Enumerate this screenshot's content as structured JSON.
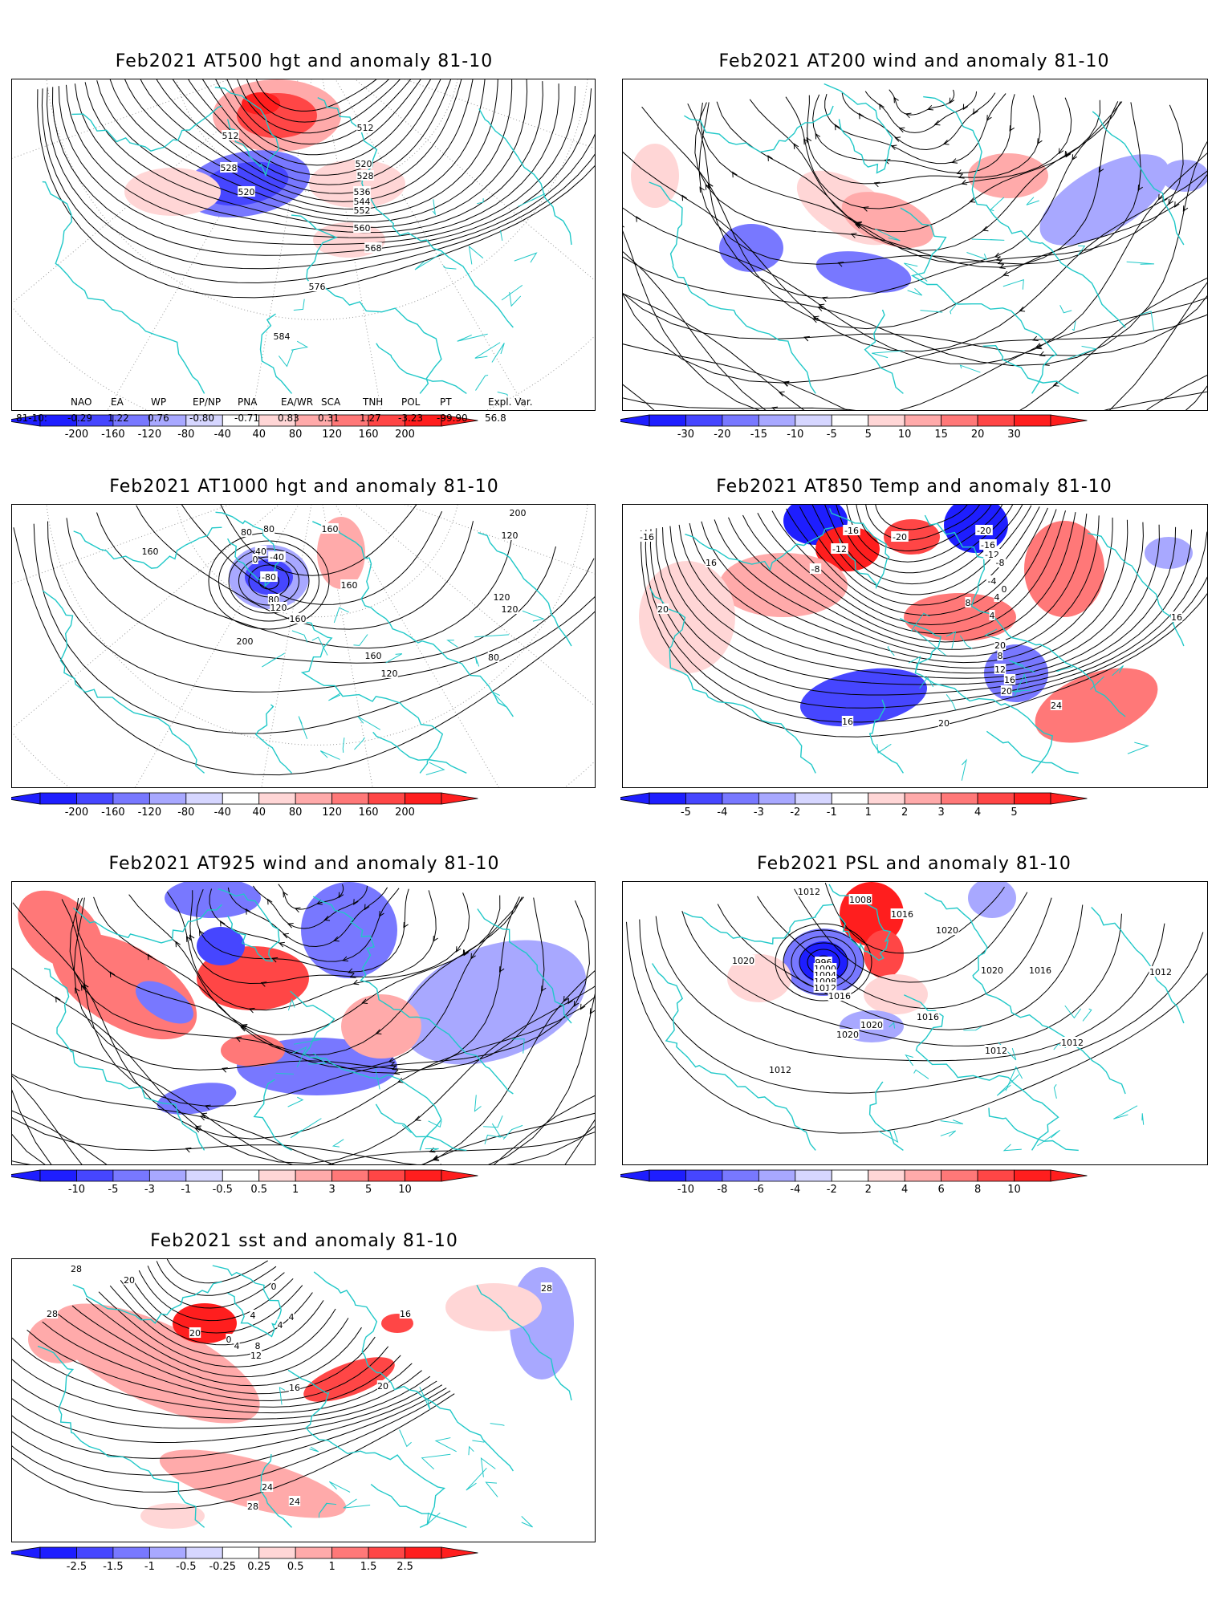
{
  "panels": [
    {
      "id": "p1",
      "title": "Feb2021 AT500 hgt and anomaly 81-10",
      "contour_labels": [
        "512",
        "512",
        "520",
        "520",
        "528",
        "528",
        "536",
        "544",
        "552",
        "560",
        "568",
        "576",
        "584"
      ],
      "colorbar": [
        "-200",
        "-160",
        "-120",
        "-80",
        "-40",
        "40",
        "80",
        "120",
        "160",
        "200"
      ]
    },
    {
      "id": "p2",
      "title": "Feb2021 AT200 wind and anomaly 81-10",
      "contour_labels": [],
      "colorbar": [
        "-30",
        "-20",
        "-15",
        "-10",
        "-5",
        "5",
        "10",
        "15",
        "20",
        "30"
      ]
    },
    {
      "id": "p3",
      "title": "Feb2021 AT1000 hgt and anomaly 81-10",
      "contour_labels": [
        "200",
        "120",
        "160",
        "80",
        "80",
        "160",
        "40",
        "0",
        "-40",
        "-80",
        "80",
        "120",
        "160",
        "160",
        "200",
        "120",
        "120",
        "80",
        "160",
        "120"
      ],
      "colorbar": [
        "-200",
        "-160",
        "-120",
        "-80",
        "-40",
        "40",
        "80",
        "120",
        "160",
        "200"
      ]
    },
    {
      "id": "p4",
      "title": "Feb2021 AT850 Temp and anomaly 81-10",
      "contour_labels": [
        "-16",
        "-20",
        "-20",
        "-16",
        "-12",
        "-12",
        "-8",
        "-8",
        "-4",
        "0",
        "4",
        "8",
        "4",
        "16",
        "20",
        "16",
        "20",
        "8",
        "12",
        "16",
        "20",
        "24",
        "20",
        "16",
        "-16",
        "16"
      ],
      "colorbar": [
        "-5",
        "-4",
        "-3",
        "-2",
        "-1",
        "1",
        "2",
        "3",
        "4",
        "5"
      ]
    },
    {
      "id": "p5",
      "title": "Feb2021 AT925 wind and anomaly 81-10",
      "contour_labels": [],
      "colorbar": [
        "-10",
        "-5",
        "-3",
        "-1",
        "-0.5",
        "0.5",
        "1",
        "3",
        "5",
        "10"
      ]
    },
    {
      "id": "p6",
      "title": "Feb2021 PSL and anomaly 81-10",
      "contour_labels": [
        "1012",
        "1008",
        "1016",
        "1020",
        "1020",
        "996",
        "1000",
        "1004",
        "1008",
        "1012",
        "1016",
        "1020",
        "1016",
        "1012",
        "1020",
        "1016",
        "1020",
        "1012",
        "1012",
        "1012"
      ],
      "colorbar": [
        "-10",
        "-8",
        "-6",
        "-4",
        "-2",
        "2",
        "4",
        "6",
        "8",
        "10"
      ]
    },
    {
      "id": "p7",
      "title": "Feb2021 sst and anomaly 81-10",
      "contour_labels": [
        "28",
        "20",
        "28",
        "0",
        "4",
        "4",
        "4",
        "20",
        "0",
        "4",
        "8",
        "12",
        "16",
        "16",
        "20",
        "24",
        "24",
        "28",
        "28"
      ],
      "colorbar": [
        "-2.5",
        "-1.5",
        "-1",
        "-0.5",
        "-0.25",
        "0.25",
        "0.5",
        "1",
        "1.5",
        "2.5"
      ]
    }
  ],
  "indices": {
    "headers": [
      "NAO",
      "EA",
      "WP",
      "EP/NP",
      "PNA",
      "EA/WR",
      "SCA",
      "TNH",
      "POL",
      "PT",
      "Expl. Var."
    ],
    "row_label": "81-10:",
    "values": [
      "-0.29",
      "1.22",
      "0.76",
      "-0.80",
      "-0.71",
      "0.83",
      "0.31",
      "1.27",
      "-3.23",
      "-99.90",
      "56.8"
    ]
  },
  "colors": {
    "blue_scale": [
      "#1e1eff",
      "#4646ff",
      "#7878ff",
      "#a8a8ff",
      "#d6d6ff"
    ],
    "red_scale": [
      "#ffd6d6",
      "#ffaaaa",
      "#ff7878",
      "#ff4646",
      "#ff1e1e"
    ],
    "coast": "#20c8c8",
    "contour": "#000000"
  }
}
